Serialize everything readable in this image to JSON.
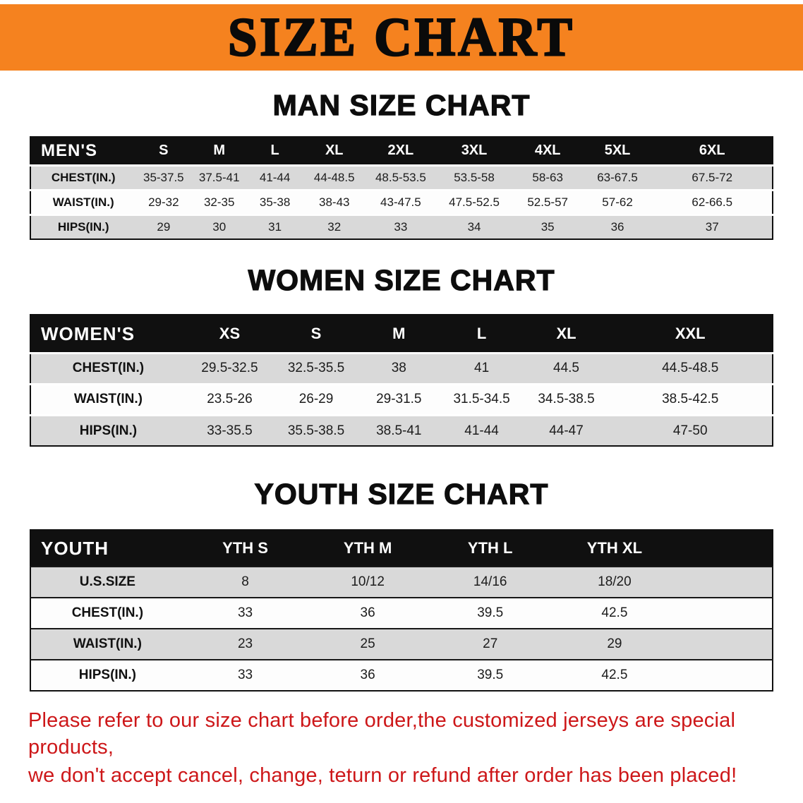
{
  "banner": {
    "title": "SIZE CHART",
    "background_color": "#f5821f"
  },
  "sections": [
    {
      "heading": "MAN SIZE CHART",
      "table": {
        "header_label": "MEN'S",
        "columns": [
          "S",
          "M",
          "L",
          "XL",
          "2XL",
          "3XL",
          "4XL",
          "5XL",
          "6XL"
        ],
        "rows": [
          {
            "label": "CHEST(IN.)",
            "values": [
              "35-37.5",
              "37.5-41",
              "41-44",
              "44-48.5",
              "48.5-53.5",
              "53.5-58",
              "58-63",
              "63-67.5",
              "67.5-72"
            ]
          },
          {
            "label": "WAIST(IN.)",
            "values": [
              "29-32",
              "32-35",
              "35-38",
              "38-43",
              "43-47.5",
              "47.5-52.5",
              "52.5-57",
              "57-62",
              "62-66.5"
            ]
          },
          {
            "label": "HIPS(IN.)",
            "values": [
              "29",
              "30",
              "31",
              "32",
              "33",
              "34",
              "35",
              "36",
              "37"
            ]
          }
        ]
      }
    },
    {
      "heading": "WOMEN SIZE CHART",
      "table": {
        "header_label": "WOMEN'S",
        "columns": [
          "XS",
          "S",
          "M",
          "L",
          "XL",
          "XXL"
        ],
        "rows": [
          {
            "label": "CHEST(IN.)",
            "values": [
              "29.5-32.5",
              "32.5-35.5",
              "38",
              "41",
              "44.5",
              "44.5-48.5"
            ]
          },
          {
            "label": "WAIST(IN.)",
            "values": [
              "23.5-26",
              "26-29",
              "29-31.5",
              "31.5-34.5",
              "34.5-38.5",
              "38.5-42.5"
            ]
          },
          {
            "label": "HIPS(IN.)",
            "values": [
              "33-35.5",
              "35.5-38.5",
              "38.5-41",
              "41-44",
              "44-47",
              "47-50"
            ]
          }
        ]
      }
    },
    {
      "heading": "YOUTH SIZE CHART",
      "table": {
        "header_label": "YOUTH",
        "columns": [
          "YTH S",
          "YTH M",
          "YTH L",
          "YTH XL"
        ],
        "rows": [
          {
            "label": "U.S.SIZE",
            "values": [
              "8",
              "10/12",
              "14/16",
              "18/20"
            ]
          },
          {
            "label": "CHEST(IN.)",
            "values": [
              "33",
              "36",
              "39.5",
              "42.5"
            ]
          },
          {
            "label": "WAIST(IN.)",
            "values": [
              "23",
              "25",
              "27",
              "29"
            ]
          },
          {
            "label": "HIPS(IN.)",
            "values": [
              "33",
              "36",
              "39.5",
              "42.5"
            ]
          }
        ]
      }
    }
  ],
  "footer": {
    "line1": "Please refer to our size chart before order,the customized jerseys are special products,",
    "line2": "we don't accept cancel, change, teturn or refund after order has been placed!",
    "text_color": "#cd1719"
  },
  "colors": {
    "banner_orange": "#f5821f",
    "header_black": "#101010",
    "row_gray": "#d9d9d9",
    "row_white": "#fdfdfd",
    "note_red": "#cd1719"
  }
}
